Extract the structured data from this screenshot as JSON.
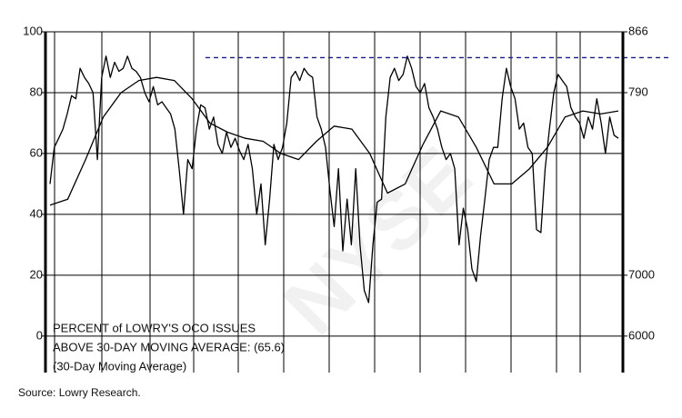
{
  "chart_data": {
    "type": "line",
    "annotations": [
      "PERCENT of LOWRY'S OCO ISSUES",
      "ABOVE 30-DAY MOVING AVERAGE: (65.6)",
      "(30-Day Moving Average)"
    ],
    "watermark": "NYSE",
    "source": "Source:  Lowry Research.",
    "ylim": [
      -12,
      100
    ],
    "yticks": [
      0,
      20,
      40,
      60,
      80,
      100
    ],
    "right_axis_labels": [
      "866",
      "790",
      "7000",
      "6000"
    ],
    "reference_line": {
      "value": 91.5,
      "color": "#1a1a8c"
    },
    "grid": true,
    "series": [
      {
        "color": "#000000",
        "values": [
          50,
          62,
          65,
          68,
          73,
          79,
          78,
          88,
          85,
          83,
          80,
          58,
          85,
          92,
          85,
          90,
          87,
          88,
          92,
          88,
          87,
          85,
          80,
          77,
          82,
          76,
          77,
          75,
          73,
          68,
          55,
          40,
          58,
          55,
          68,
          76,
          75,
          68,
          72,
          63,
          60,
          67,
          62,
          65,
          61,
          58,
          63,
          55,
          40,
          50,
          30,
          45,
          63,
          58,
          62,
          70,
          85,
          87,
          84,
          88,
          86,
          85,
          72,
          68,
          62,
          48,
          36,
          55,
          28,
          45,
          30,
          55,
          30,
          15,
          11,
          30,
          44,
          45,
          72,
          85,
          88,
          84,
          86,
          92,
          88,
          82,
          80,
          83,
          75,
          72,
          68,
          62,
          58,
          60,
          55,
          30,
          42,
          35,
          22,
          18,
          33,
          45,
          58,
          62,
          62,
          78,
          88,
          82,
          78,
          68,
          70,
          62,
          60,
          35,
          34,
          55,
          68,
          80,
          86,
          84,
          82,
          75,
          72,
          70,
          65,
          72,
          68,
          78,
          70,
          60,
          72,
          66,
          65
        ]
      },
      {
        "color": "#000000",
        "values": [
          43,
          45,
          58,
          72,
          80,
          84,
          85,
          84,
          78,
          70,
          67,
          65,
          64,
          60,
          58,
          64,
          69,
          68,
          60,
          47,
          50,
          63,
          74,
          72,
          62,
          50,
          50,
          55,
          62,
          72,
          74,
          73,
          74
        ]
      }
    ]
  }
}
